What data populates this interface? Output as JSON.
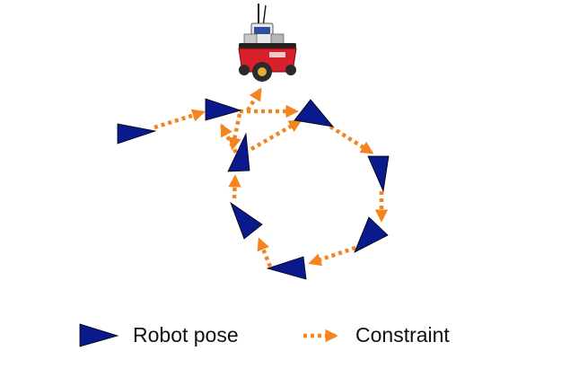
{
  "colors": {
    "pose": "#0a1a8c",
    "pose_outline": "#000000",
    "constraint": "#f5841f",
    "robot_body": "#d8202a",
    "robot_wheel": "#2a2a2a"
  },
  "icons": {
    "robot": "mobile-robot-icon",
    "pose": "triangle-icon",
    "constraint": "dotted-arrow-icon"
  },
  "legend": {
    "pose_label": "Robot pose",
    "constraint_label": "Constraint"
  }
}
